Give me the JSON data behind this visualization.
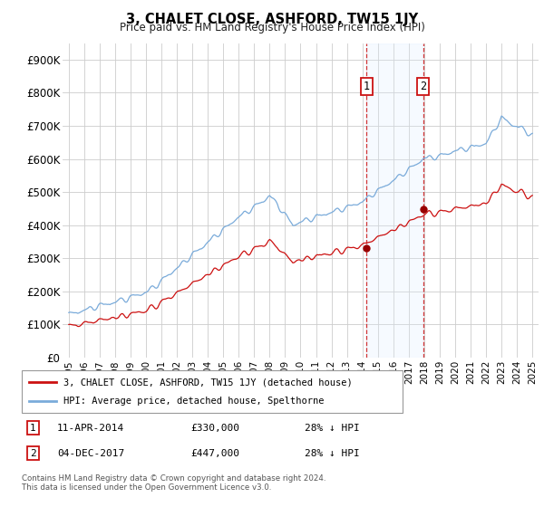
{
  "title": "3, CHALET CLOSE, ASHFORD, TW15 1JY",
  "subtitle": "Price paid vs. HM Land Registry's House Price Index (HPI)",
  "legend_line1": "3, CHALET CLOSE, ASHFORD, TW15 1JY (detached house)",
  "legend_line2": "HPI: Average price, detached house, Spelthorne",
  "transaction1_date": "11-APR-2014",
  "transaction1_price": "£330,000",
  "transaction1_info": "28% ↓ HPI",
  "transaction2_date": "04-DEC-2017",
  "transaction2_price": "£447,000",
  "transaction2_info": "28% ↓ HPI",
  "footer": "Contains HM Land Registry data © Crown copyright and database right 2024.\nThis data is licensed under the Open Government Licence v3.0.",
  "hpi_color": "#7aabda",
  "price_color": "#cc1111",
  "marker_color": "#990000",
  "vline_color": "#cc1111",
  "shade_color": "#ddeeff",
  "ylim": [
    0,
    950000
  ],
  "yticks": [
    0,
    100000,
    200000,
    300000,
    400000,
    500000,
    600000,
    700000,
    800000,
    900000
  ],
  "ytick_labels": [
    "£0",
    "£100K",
    "£200K",
    "£300K",
    "£400K",
    "£500K",
    "£600K",
    "£700K",
    "£800K",
    "£900K"
  ],
  "t1_year": 2014.28,
  "t1_price": 330000,
  "t2_year": 2017.92,
  "t2_price": 447000
}
